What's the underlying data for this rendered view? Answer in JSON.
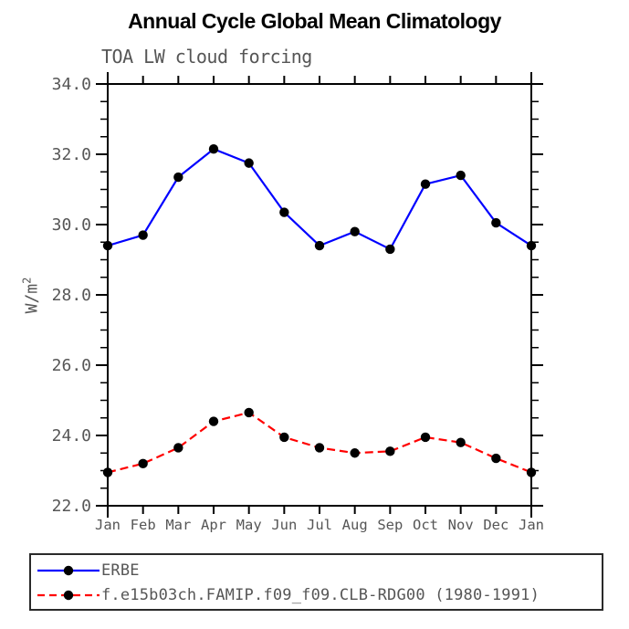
{
  "chart_data": {
    "type": "line",
    "title": "Annual Cycle Global Mean Climatology",
    "subtitle": "TOA LW cloud forcing",
    "ylabel": {
      "base": "W/m",
      "exponent": "2"
    },
    "categories": [
      "Jan",
      "Feb",
      "Mar",
      "Apr",
      "May",
      "Jun",
      "Jul",
      "Aug",
      "Sep",
      "Oct",
      "Nov",
      "Dec",
      "Jan"
    ],
    "ylim": [
      22.0,
      34.0
    ],
    "ytick_step": 2.0,
    "yminor_step": 0.5,
    "ytick_labels": [
      "22.0",
      "24.0",
      "26.0",
      "28.0",
      "30.0",
      "32.0",
      "34.0"
    ],
    "grid": false,
    "frame": true,
    "legend_position": "bottom-left-box",
    "series": [
      {
        "name": "ERBE",
        "color": "#0000ff",
        "style": "solid",
        "marker": "filled-circle",
        "values": [
          29.4,
          29.7,
          31.35,
          32.15,
          31.75,
          30.35,
          29.4,
          29.8,
          29.3,
          31.15,
          31.4,
          30.05,
          29.4
        ]
      },
      {
        "name": "f.e15b03ch.FAMIP.f09_f09.CLB-RDG00 (1980-1991)",
        "color": "#ff0000",
        "style": "dashed",
        "marker": "filled-circle",
        "values": [
          22.95,
          23.2,
          23.65,
          24.4,
          24.65,
          23.95,
          23.65,
          23.5,
          23.55,
          23.95,
          23.8,
          23.35,
          22.95
        ]
      }
    ],
    "colors": {
      "marker": "#000000",
      "axis": "#000000",
      "tick_label_text": "#565656",
      "title_text": "#000000"
    }
  }
}
